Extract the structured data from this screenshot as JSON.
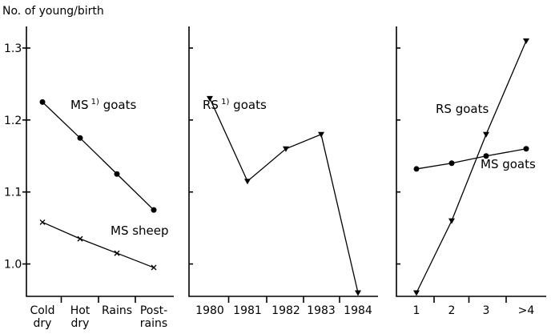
{
  "chart_data": [
    {
      "type": "line",
      "ylabel": "No. of young/birth",
      "ylim": [
        0.955,
        1.33
      ],
      "yticks": [
        1.0,
        1.1,
        1.2,
        1.3
      ],
      "ytick_labels": [
        "1.0",
        "1.1",
        "1.2",
        "1.3"
      ],
      "categories": [
        [
          "Cold",
          "dry"
        ],
        [
          "Hot",
          "dry"
        ],
        [
          "Rains",
          ""
        ],
        [
          "Post-",
          "rains"
        ]
      ],
      "series": [
        {
          "name": "MS goats",
          "label_text": "MS",
          "label_sup": "1)",
          "label_rest": " goats",
          "marker": "circle",
          "values": [
            1.225,
            1.175,
            1.125,
            1.075
          ]
        },
        {
          "name": "MS sheep",
          "label_text": "MS sheep",
          "label_sup": "",
          "label_rest": "",
          "marker": "x",
          "values": [
            1.058,
            1.035,
            1.015,
            0.995
          ]
        }
      ]
    },
    {
      "type": "line",
      "ylim": [
        0.955,
        1.33
      ],
      "categories": [
        [
          "1980",
          ""
        ],
        [
          "1981",
          ""
        ],
        [
          "1982",
          ""
        ],
        [
          "1983",
          ""
        ],
        [
          "1984",
          ""
        ]
      ],
      "series": [
        {
          "name": "RS goats",
          "label_text": "RS",
          "label_sup": "1)",
          "label_rest": " goats",
          "marker": "triangle",
          "values": [
            1.23,
            1.115,
            1.16,
            1.18,
            0.96
          ]
        }
      ]
    },
    {
      "type": "line",
      "ylim": [
        0.955,
        1.33
      ],
      "categories": [
        [
          "1",
          ""
        ],
        [
          "2",
          ""
        ],
        [
          "3",
          ""
        ],
        [
          ">4",
          ""
        ]
      ],
      "series": [
        {
          "name": "RS goats",
          "label_text": "RS goats",
          "label_sup": "",
          "label_rest": "",
          "marker": "triangle",
          "values": [
            0.96,
            1.06,
            1.18,
            1.31
          ]
        },
        {
          "name": "MS goats",
          "label_text": "MS goats",
          "label_sup": "",
          "label_rest": "",
          "marker": "circle",
          "values": [
            1.132,
            1.14,
            1.15,
            1.16
          ]
        }
      ]
    }
  ]
}
